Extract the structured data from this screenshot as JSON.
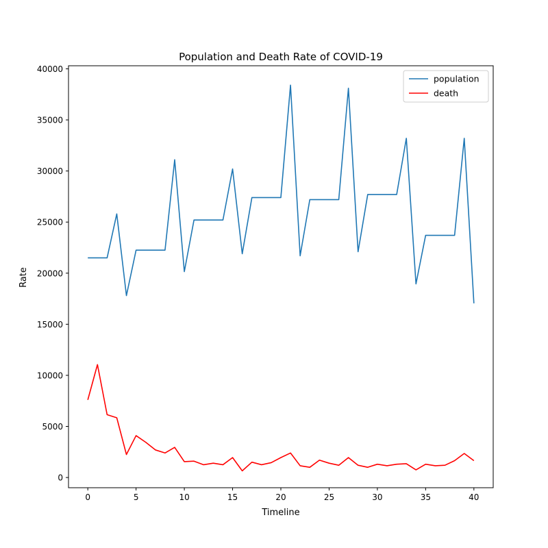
{
  "chart_data": {
    "type": "line",
    "title": "Population and Death Rate of COVID-19",
    "xlabel": "Timeline",
    "ylabel": "Rate",
    "xlim": [
      -2,
      42
    ],
    "ylim": [
      -1000,
      40300
    ],
    "xticks": [
      0,
      5,
      10,
      15,
      20,
      25,
      30,
      35,
      40
    ],
    "yticks": [
      0,
      5000,
      10000,
      15000,
      20000,
      25000,
      30000,
      35000,
      40000
    ],
    "grid": false,
    "legend_position": "top-right",
    "x": [
      0,
      1,
      2,
      3,
      4,
      5,
      6,
      7,
      8,
      9,
      10,
      11,
      12,
      13,
      14,
      15,
      16,
      17,
      18,
      19,
      20,
      21,
      22,
      23,
      24,
      25,
      26,
      27,
      28,
      29,
      30,
      31,
      32,
      33,
      34,
      35,
      36,
      37,
      38,
      39,
      40
    ],
    "series": [
      {
        "name": "population",
        "color": "#1f77b4",
        "values": [
          21500,
          21500,
          21500,
          25800,
          17800,
          22250,
          22250,
          22250,
          22250,
          31100,
          20150,
          25200,
          25200,
          25200,
          25200,
          30200,
          21900,
          27400,
          27400,
          27400,
          27400,
          38400,
          21700,
          27200,
          27200,
          27200,
          27200,
          38100,
          22100,
          27700,
          27700,
          27700,
          27700,
          33200,
          18950,
          23700,
          23700,
          23700,
          23700,
          33200,
          17050
        ]
      },
      {
        "name": "death",
        "color": "#ff0000",
        "values": [
          7600,
          11050,
          6150,
          5850,
          2250,
          4100,
          3450,
          2700,
          2400,
          2950,
          1550,
          1600,
          1250,
          1400,
          1250,
          1950,
          650,
          1500,
          1250,
          1450,
          1950,
          2400,
          1150,
          1000,
          1700,
          1400,
          1200,
          1950,
          1200,
          1000,
          1300,
          1150,
          1300,
          1350,
          750,
          1300,
          1150,
          1200,
          1650,
          2350,
          1650
        ]
      }
    ]
  }
}
